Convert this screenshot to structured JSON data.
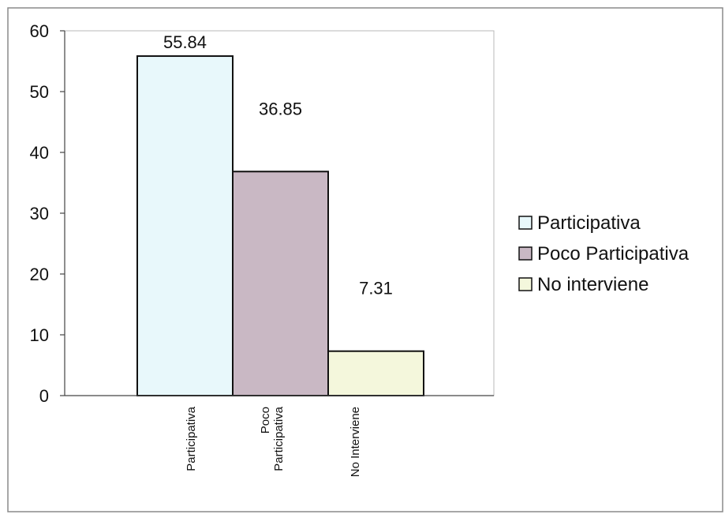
{
  "chart_data": {
    "type": "bar",
    "title": "",
    "xlabel": "",
    "ylabel": "",
    "ylim": [
      0,
      60
    ],
    "yticks": [
      "0",
      "10",
      "20",
      "30",
      "40",
      "50",
      "60"
    ],
    "categories": [
      [
        "Participativa"
      ],
      [
        "Poco",
        "Participativa"
      ],
      [
        "No Interviene"
      ]
    ],
    "values": [
      55.84,
      36.85,
      7.31
    ],
    "value_labels": [
      "55.84",
      "36.85",
      "7.31"
    ],
    "colors": [
      "#e8f8fb",
      "#c9b8c4",
      "#f4f7dc"
    ],
    "grid": false,
    "legend": {
      "position": "right",
      "entries": [
        "Participativa",
        "Poco Participativa",
        "No interviene"
      ]
    }
  }
}
